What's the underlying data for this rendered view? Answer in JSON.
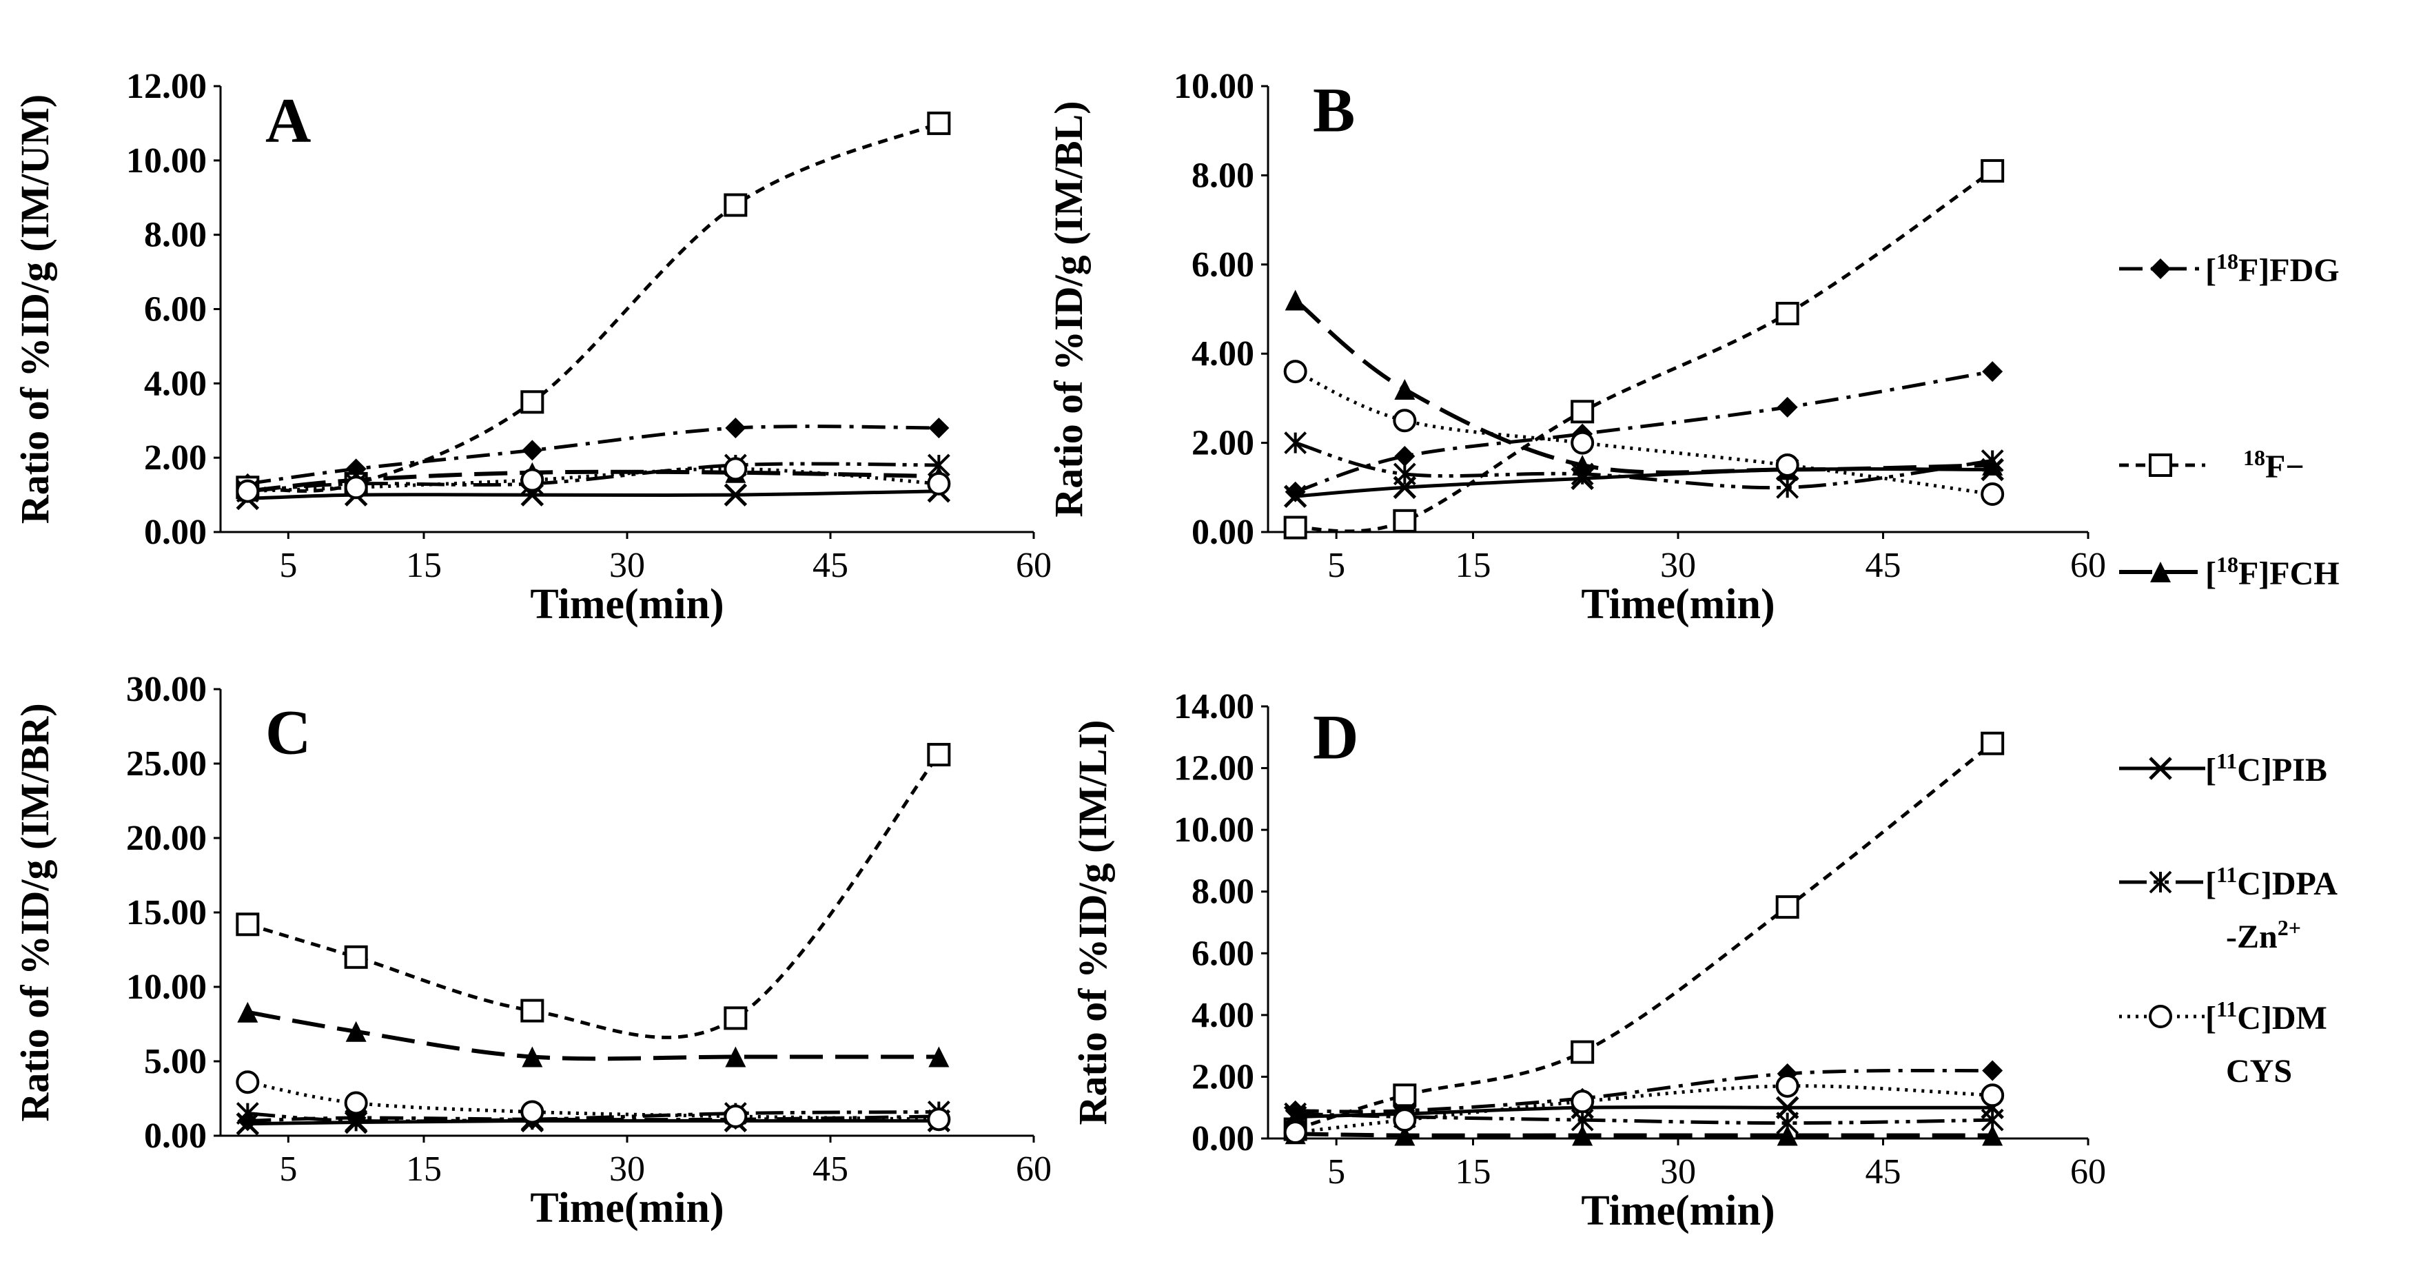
{
  "figure": {
    "legend": [
      {
        "key": "fdg",
        "sup": "18",
        "rest": "F]FDG",
        "pre": "[",
        "line2": "",
        "marker": "diamond",
        "dash": "dashdot",
        "filled": true
      },
      {
        "key": "fluoride",
        "sup": "18",
        "rest": "F−",
        "pre": "",
        "line2": "",
        "marker": "square",
        "dash": "shortdash",
        "filled": false
      },
      {
        "key": "fch",
        "sup": "18",
        "rest": "F]FCH",
        "pre": "[",
        "line2": "",
        "marker": "triangle",
        "dash": "longdash",
        "filled": true
      },
      {
        "key": "pib",
        "sup": "11",
        "rest": "C]PIB",
        "pre": "[",
        "line2": "",
        "marker": "x",
        "dash": "solid",
        "filled": false
      },
      {
        "key": "dpa",
        "sup": "11",
        "rest": "C]DPA",
        "pre": "[",
        "line2": "-Zn2+",
        "marker": "asterisk",
        "dash": "dashdotdot",
        "filled": false
      },
      {
        "key": "dmcys",
        "sup": "11",
        "rest": "C]DM",
        "pre": "[",
        "line2": "CYS",
        "marker": "circle",
        "dash": "dotted",
        "filled": false
      }
    ]
  },
  "chart_data": [
    {
      "panel": "A",
      "type": "line",
      "ylabel": "Ratio of %ID/g (IM/UM)",
      "xlabel": "Time(min)",
      "yticks": [
        "0.00",
        "2.00",
        "4.00",
        "6.00",
        "8.00",
        "10.00",
        "12.00"
      ],
      "xticks": [
        "5",
        "15",
        "30",
        "45",
        "60"
      ],
      "ylim": [
        0,
        12
      ],
      "x": [
        2,
        10,
        23,
        38,
        53
      ],
      "series": [
        {
          "key": "fdg",
          "name": "[18F]FDG",
          "values": [
            1.3,
            1.7,
            2.2,
            2.8,
            2.8
          ]
        },
        {
          "key": "fluoride",
          "name": "18F-",
          "values": [
            1.2,
            1.3,
            3.5,
            8.8,
            11.0
          ]
        },
        {
          "key": "fch",
          "name": "[18F]FCH",
          "values": [
            1.1,
            1.4,
            1.6,
            1.6,
            1.5
          ]
        },
        {
          "key": "pib",
          "name": "[11C]PIB",
          "values": [
            0.9,
            1.0,
            1.0,
            1.0,
            1.1
          ]
        },
        {
          "key": "dpa",
          "name": "[11C]DPA-Zn2+",
          "values": [
            1.1,
            1.3,
            1.3,
            1.8,
            1.8
          ]
        },
        {
          "key": "dmcys",
          "name": "[11C]DMCYS",
          "values": [
            1.1,
            1.2,
            1.4,
            1.7,
            1.3
          ]
        }
      ]
    },
    {
      "panel": "B",
      "type": "line",
      "ylabel": "Ratio of %ID/g (IM/BL)",
      "xlabel": "Time(min)",
      "yticks": [
        "0.00",
        "2.00",
        "4.00",
        "6.00",
        "8.00",
        "10.00"
      ],
      "xticks": [
        "5",
        "15",
        "30",
        "45",
        "60"
      ],
      "ylim": [
        0,
        10
      ],
      "x": [
        2,
        10,
        23,
        38,
        53
      ],
      "series": [
        {
          "key": "fdg",
          "name": "[18F]FDG",
          "values": [
            0.9,
            1.7,
            2.2,
            2.8,
            3.6
          ]
        },
        {
          "key": "fluoride",
          "name": "18F-",
          "values": [
            0.1,
            0.25,
            2.7,
            4.9,
            8.1
          ]
        },
        {
          "key": "fch",
          "name": "[18F]FCH",
          "values": [
            5.2,
            3.2,
            1.5,
            1.4,
            1.5
          ]
        },
        {
          "key": "pib",
          "name": "[11C]PIB",
          "values": [
            0.8,
            1.0,
            1.2,
            1.4,
            1.4
          ]
        },
        {
          "key": "dpa",
          "name": "[11C]DPA-Zn2+",
          "values": [
            2.0,
            1.3,
            1.3,
            1.0,
            1.6
          ]
        },
        {
          "key": "dmcys",
          "name": "[11C]DMCYS",
          "values": [
            3.6,
            2.5,
            2.0,
            1.5,
            0.85
          ]
        }
      ]
    },
    {
      "panel": "C",
      "type": "line",
      "ylabel": "Ratio of %ID/g (IM/BR)",
      "xlabel": "Time(min)",
      "yticks": [
        "0.00",
        "5.00",
        "10.00",
        "15.00",
        "20.00",
        "25.00",
        "30.00"
      ],
      "xticks": [
        "5",
        "15",
        "30",
        "45",
        "60"
      ],
      "ylim": [
        0,
        30
      ],
      "x": [
        2,
        10,
        23,
        38,
        53
      ],
      "series": [
        {
          "key": "fdg",
          "name": "[18F]FDG",
          "values": [
            1.0,
            1.2,
            1.1,
            1.1,
            1.3
          ]
        },
        {
          "key": "fluoride",
          "name": "18F-",
          "values": [
            14.2,
            12.0,
            8.4,
            7.9,
            25.6
          ]
        },
        {
          "key": "fch",
          "name": "[18F]FCH",
          "values": [
            8.3,
            7.0,
            5.3,
            5.3,
            5.3
          ]
        },
        {
          "key": "pib",
          "name": "[11C]PIB",
          "values": [
            0.8,
            0.9,
            1.0,
            1.0,
            1.0
          ]
        },
        {
          "key": "dpa",
          "name": "[11C]DPA-Zn2+",
          "values": [
            1.5,
            1.0,
            1.1,
            1.5,
            1.6
          ]
        },
        {
          "key": "dmcys",
          "name": "[11C]DMCYS",
          "values": [
            3.6,
            2.2,
            1.6,
            1.3,
            1.1
          ]
        }
      ]
    },
    {
      "panel": "D",
      "type": "line",
      "ylabel": "Ratio of %ID/g (IM/LI)",
      "xlabel": "Time(min)",
      "yticks": [
        "0.00",
        "2.00",
        "4.00",
        "6.00",
        "8.00",
        "10.00",
        "12.00",
        "14.00"
      ],
      "xticks": [
        "5",
        "15",
        "30",
        "45",
        "60"
      ],
      "ylim": [
        0,
        14
      ],
      "x": [
        2,
        10,
        23,
        38,
        53
      ],
      "series": [
        {
          "key": "fdg",
          "name": "[18F]FDG",
          "values": [
            0.9,
            0.9,
            1.3,
            2.1,
            2.2
          ]
        },
        {
          "key": "fluoride",
          "name": "18F-",
          "values": [
            0.3,
            1.4,
            2.8,
            7.5,
            12.8
          ]
        },
        {
          "key": "fch",
          "name": "[18F]FCH",
          "values": [
            0.15,
            0.1,
            0.1,
            0.1,
            0.1
          ]
        },
        {
          "key": "pib",
          "name": "[11C]PIB",
          "values": [
            0.7,
            0.8,
            1.0,
            1.0,
            1.0
          ]
        },
        {
          "key": "dpa",
          "name": "[11C]DPA-Zn2+",
          "values": [
            0.8,
            0.7,
            0.6,
            0.5,
            0.6
          ]
        },
        {
          "key": "dmcys",
          "name": "[11C]DMCYS",
          "values": [
            0.2,
            0.6,
            1.2,
            1.7,
            1.4
          ]
        }
      ]
    }
  ]
}
